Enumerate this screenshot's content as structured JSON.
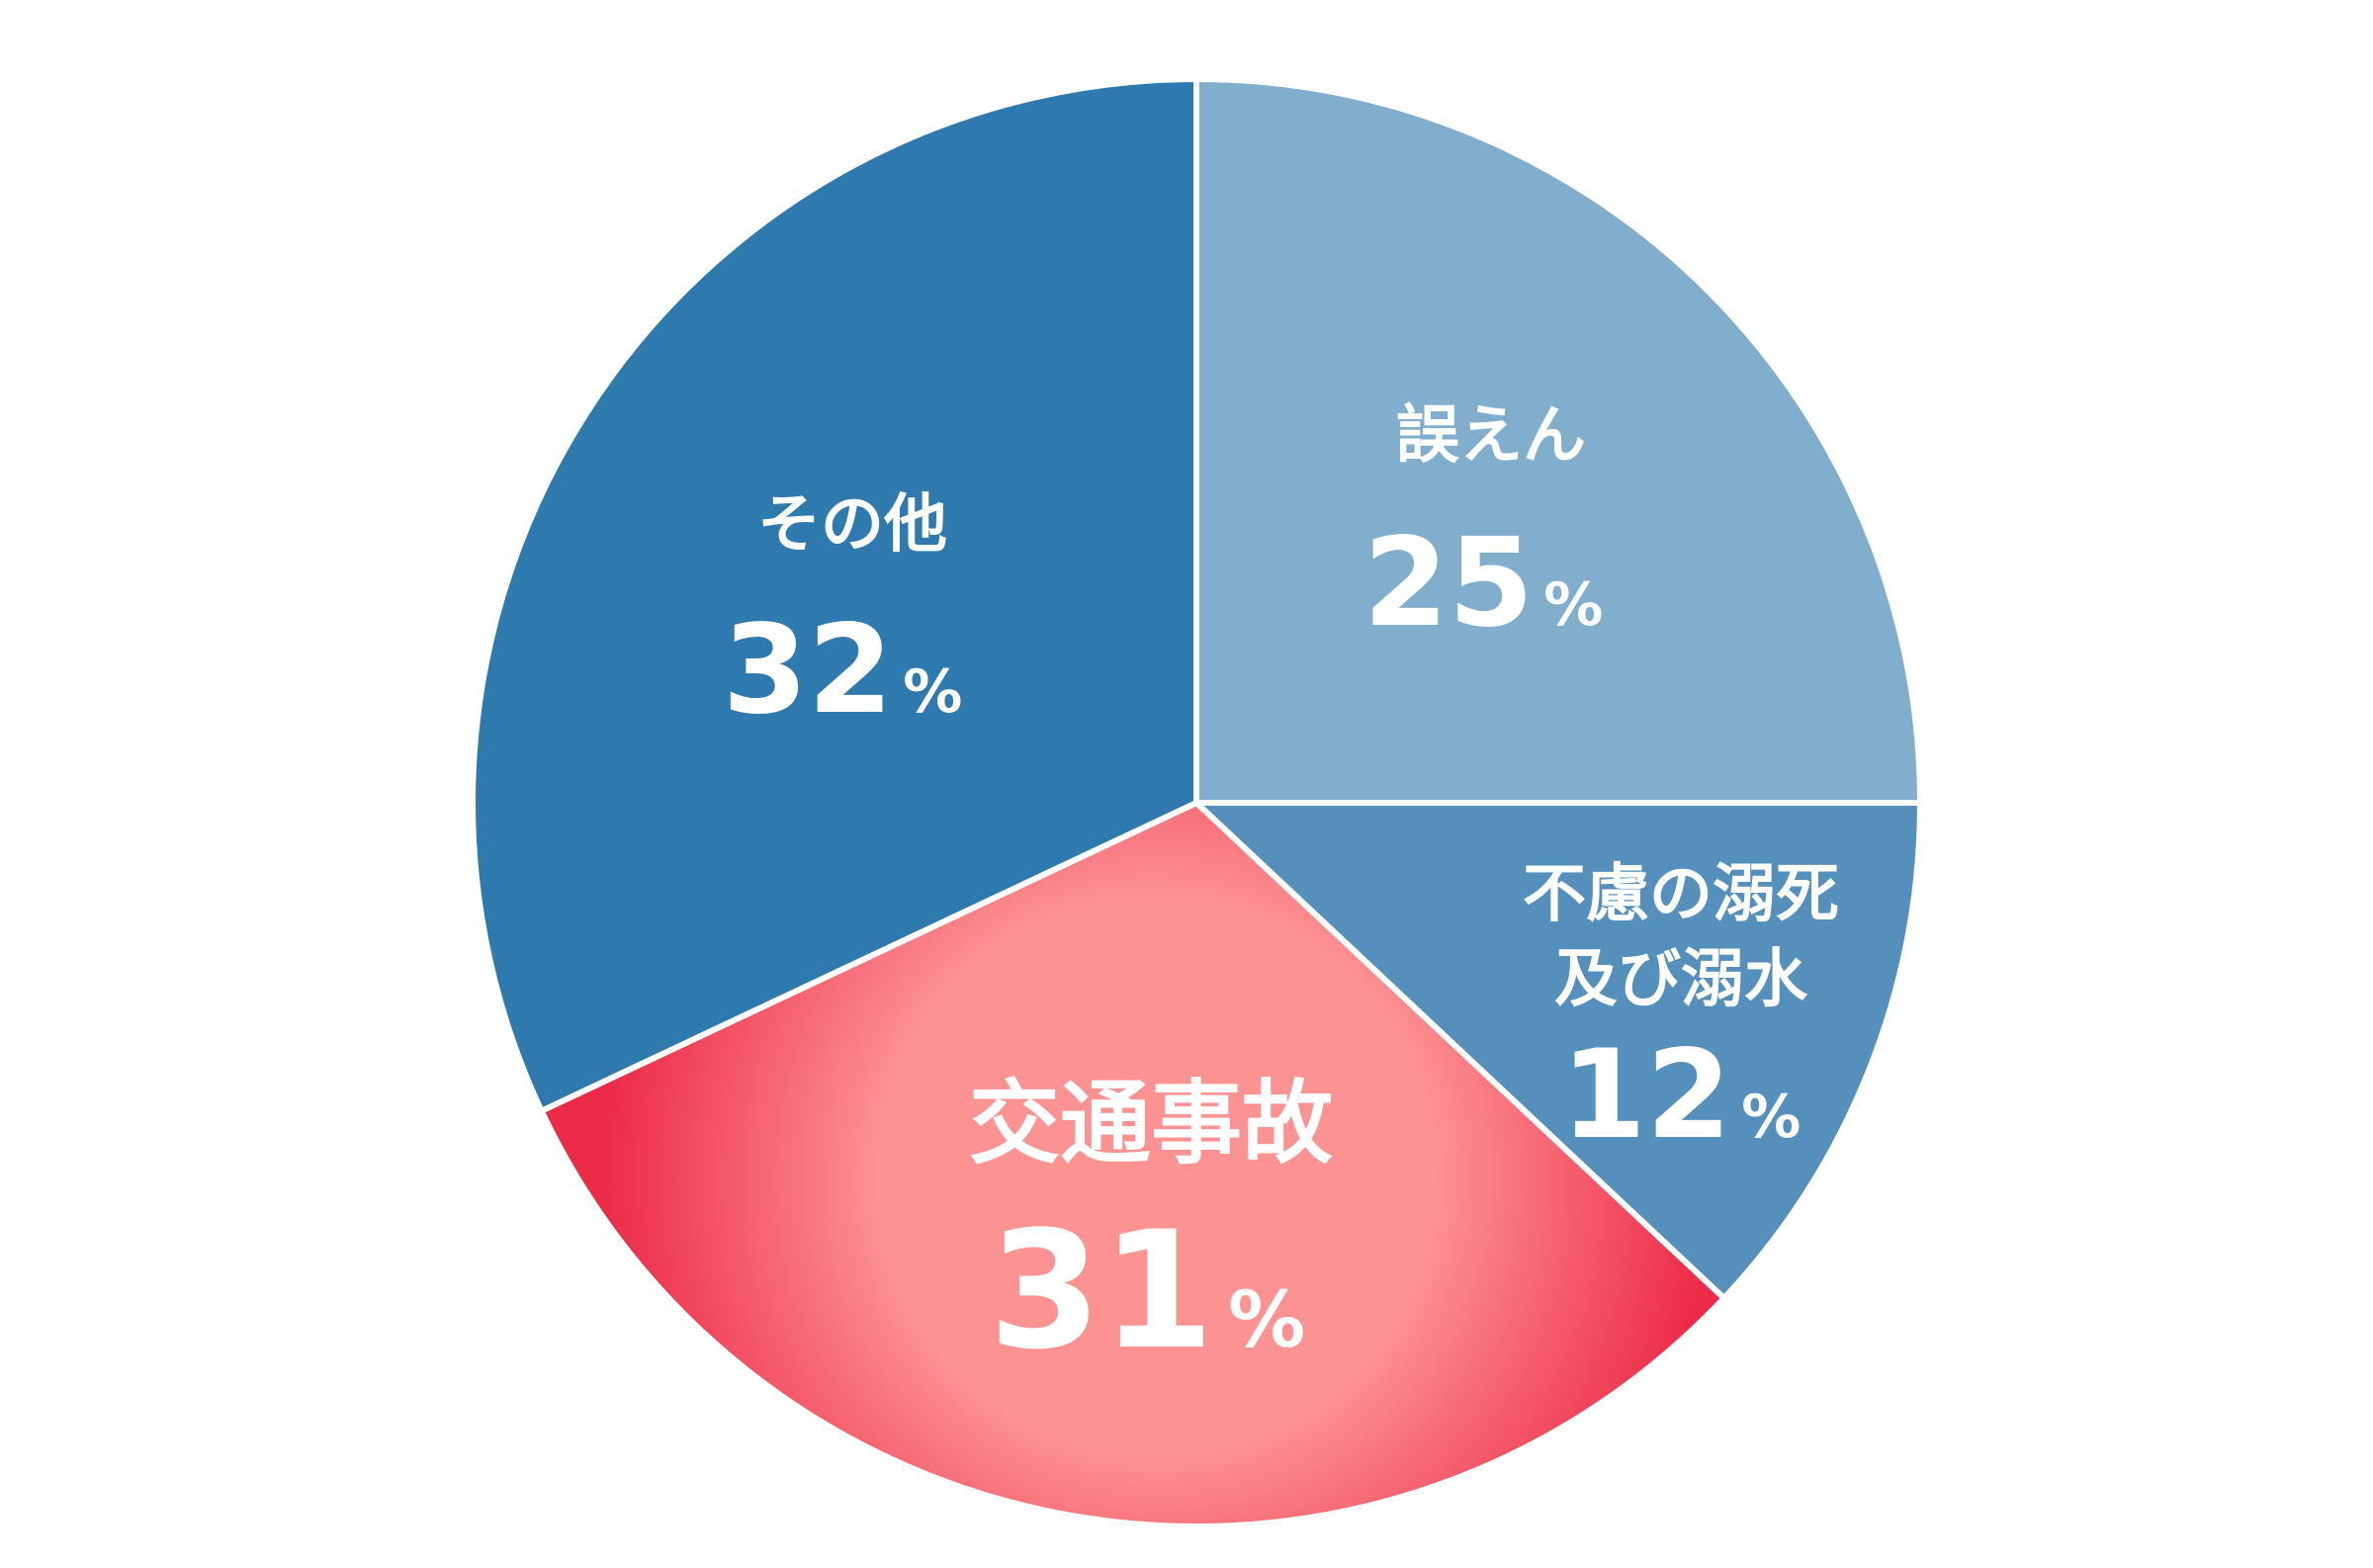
{
  "chart_data": {
    "type": "pie",
    "title": "",
    "start": "top",
    "direction": "clockwise",
    "slices": [
      {
        "name": "誤えん",
        "value": 25,
        "value_label": "25",
        "unit": "%",
        "color": "#82aecd",
        "highlight": false
      },
      {
        "name": "不慮の溺死及び溺水",
        "lines": [
          "不慮の溺死",
          "及び溺水"
        ],
        "value": 12,
        "value_label": "12",
        "unit": "%",
        "color": "#5590bd",
        "highlight": false
      },
      {
        "name": "交通事故",
        "value": 31,
        "value_label": "31",
        "unit": "%",
        "color": "#fd9293",
        "edge_color": "#ec2b48",
        "highlight": true
      },
      {
        "name": "その他",
        "value": 32,
        "value_label": "32",
        "unit": "%",
        "color": "#2e7aae",
        "highlight": false
      }
    ]
  }
}
